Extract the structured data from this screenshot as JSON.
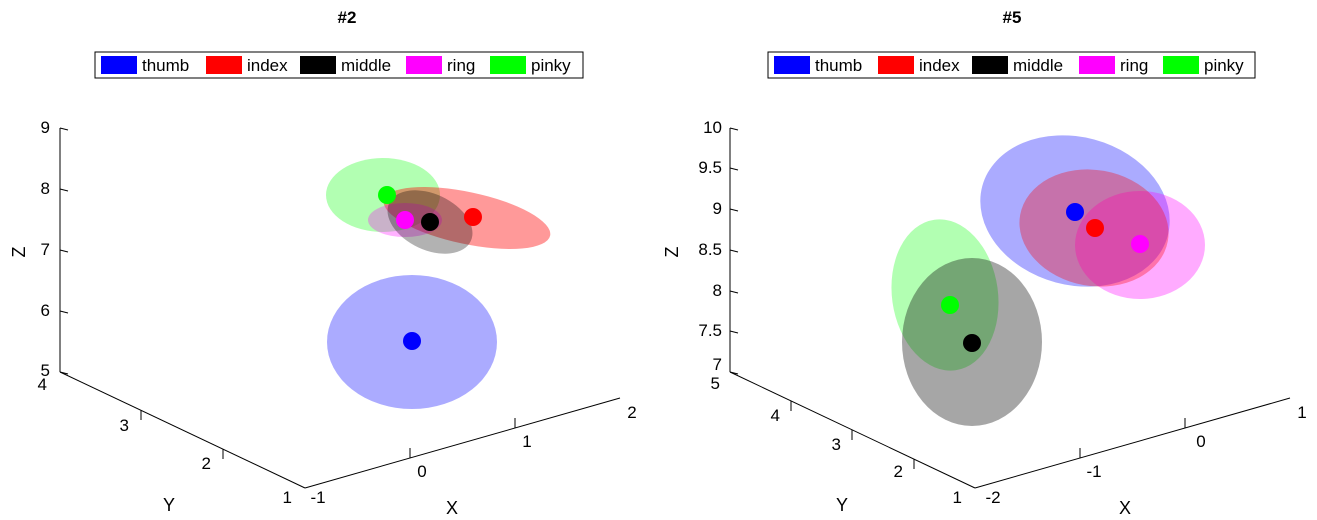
{
  "chart_data": [
    {
      "type": "scatter",
      "title": "#2",
      "xlabel": "X",
      "ylabel": "Y",
      "zlabel": "Z",
      "xlim": [
        -1,
        2
      ],
      "ylim": [
        1,
        4
      ],
      "zlim": [
        5,
        9
      ],
      "x_ticks": [
        "-1",
        "0",
        "1",
        "2"
      ],
      "y_ticks": [
        "1",
        "2",
        "3",
        "4"
      ],
      "z_ticks": [
        "5",
        "6",
        "7",
        "8",
        "9"
      ],
      "legend_position": "top-center",
      "series": [
        {
          "name": "thumb",
          "color": "#0000ff",
          "points": [
            {
              "x": 0.7,
              "y": 2.2,
              "z": 6.5
            }
          ]
        },
        {
          "name": "index",
          "color": "#ff0000",
          "points": [
            {
              "x": 1.3,
              "y": 2.7,
              "z": 8.0
            }
          ]
        },
        {
          "name": "middle",
          "color": "#000000",
          "points": [
            {
              "x": 0.9,
              "y": 2.7,
              "z": 7.9
            }
          ]
        },
        {
          "name": "ring",
          "color": "#ff00ff",
          "points": [
            {
              "x": 0.7,
              "y": 2.7,
              "z": 7.9
            }
          ]
        },
        {
          "name": "pinky",
          "color": "#00ff00",
          "points": [
            {
              "x": 0.5,
              "y": 2.8,
              "z": 8.2
            }
          ]
        }
      ]
    },
    {
      "type": "scatter",
      "title": "#5",
      "xlabel": "X",
      "ylabel": "Y",
      "zlabel": "Z",
      "xlim": [
        -2,
        1
      ],
      "ylim": [
        1,
        5
      ],
      "zlim": [
        7,
        10
      ],
      "x_ticks": [
        "-2",
        "-1",
        "0",
        "1"
      ],
      "y_ticks": [
        "1",
        "2",
        "3",
        "4",
        "5"
      ],
      "z_ticks": [
        "7",
        "7.5",
        "8",
        "8.5",
        "9",
        "9.5",
        "10"
      ],
      "legend_position": "top-center",
      "series": [
        {
          "name": "thumb",
          "color": "#0000ff",
          "points": [
            {
              "x": 0.0,
              "y": 3.0,
              "z": 9.3
            }
          ]
        },
        {
          "name": "index",
          "color": "#ff0000",
          "points": [
            {
              "x": 0.2,
              "y": 3.0,
              "z": 9.1
            }
          ]
        },
        {
          "name": "middle",
          "color": "#000000",
          "points": [
            {
              "x": -1.0,
              "y": 3.5,
              "z": 8.0
            }
          ]
        },
        {
          "name": "ring",
          "color": "#ff00ff",
          "points": [
            {
              "x": 0.5,
              "y": 3.0,
              "z": 9.0
            }
          ]
        },
        {
          "name": "pinky",
          "color": "#00ff00",
          "points": [
            {
              "x": -1.2,
              "y": 3.4,
              "z": 8.3
            }
          ]
        }
      ]
    }
  ]
}
